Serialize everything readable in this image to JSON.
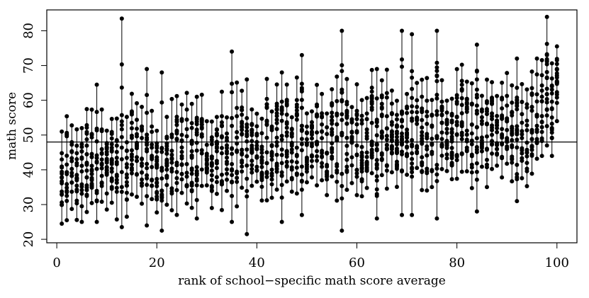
{
  "chart_data": {
    "type": "scatter",
    "title": "",
    "xlabel": "rank of  school−specific math score  average",
    "ylabel": "math score",
    "xlim": [
      -2,
      104
    ],
    "ylim": [
      19,
      86
    ],
    "xticks": [
      0,
      20,
      40,
      60,
      80,
      100
    ],
    "yticks": [
      20,
      30,
      40,
      50,
      60,
      70,
      80
    ],
    "grid": false,
    "legend": "none",
    "reference_line_y": 48,
    "n_schools": 100,
    "schools": [
      {
        "rank": 1,
        "min": 24.5,
        "max": 51
      },
      {
        "rank": 5,
        "min": 25,
        "max": 52
      },
      {
        "rank": 8,
        "min": 25,
        "max": 64.5
      },
      {
        "rank": 13,
        "min": 23.5,
        "max": 83.5
      },
      {
        "rank": 18,
        "min": 24,
        "max": 69
      },
      {
        "rank": 21,
        "min": 22.5,
        "max": 68
      },
      {
        "rank": 28,
        "min": 26,
        "max": 61
      },
      {
        "rank": 35,
        "min": 25,
        "max": 74
      },
      {
        "rank": 38,
        "min": 21.5,
        "max": 66
      },
      {
        "rank": 45,
        "min": 25,
        "max": 68
      },
      {
        "rank": 49,
        "min": 27,
        "max": 73
      },
      {
        "rank": 57,
        "min": 22.5,
        "max": 80
      },
      {
        "rank": 64,
        "min": 26,
        "max": 69
      },
      {
        "rank": 69,
        "min": 27,
        "max": 80
      },
      {
        "rank": 71,
        "min": 27,
        "max": 79
      },
      {
        "rank": 76,
        "min": 26,
        "max": 80
      },
      {
        "rank": 84,
        "min": 28,
        "max": 76
      },
      {
        "rank": 92,
        "min": 31,
        "max": 72
      },
      {
        "rank": 98,
        "min": 47,
        "max": 84
      },
      {
        "rank": 100,
        "min": 54,
        "max": 75.5
      }
    ]
  }
}
